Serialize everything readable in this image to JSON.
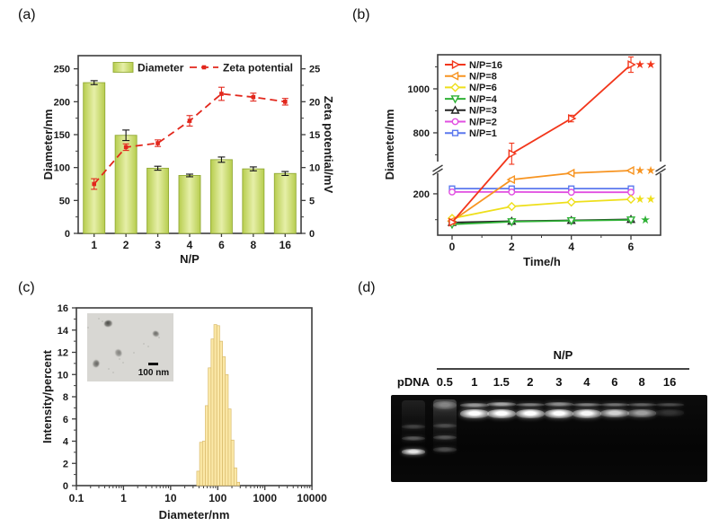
{
  "figure": {
    "panel_labels": [
      "(a)",
      "(b)",
      "(c)",
      "(d)"
    ],
    "colors": {
      "axis": "#3d3d3d",
      "bar_main": "#b7cd4e",
      "bar_light": "#e6efa8",
      "bar_edge": "#93ab37",
      "red": "#e2271c",
      "hist_fill": "#fbe8a7",
      "hist_edge": "#d9ba6a"
    }
  },
  "chart_data": [
    {
      "id": "a",
      "type": "bar",
      "categories": [
        "1",
        "2",
        "3",
        "4",
        "6",
        "8",
        "16"
      ],
      "xlabel": "N/P",
      "left_axis": {
        "label": "Diameter/nm",
        "ticks": [
          0,
          50,
          100,
          150,
          200,
          250
        ],
        "minor_step": 25,
        "lim": [
          0,
          270
        ]
      },
      "right_axis": {
        "label": "Zeta potential/mV",
        "ticks": [
          0,
          5,
          10,
          15,
          20,
          25
        ],
        "minor_step": 2.5,
        "lim": [
          0,
          27
        ]
      },
      "legend_position": "top-inside",
      "series": [
        {
          "name": "Diameter",
          "plot": "bar",
          "axis": "left",
          "values": [
            229,
            149,
            99,
            88,
            112,
            98,
            91
          ],
          "errors": [
            3,
            8,
            3,
            2,
            4,
            3,
            3
          ]
        },
        {
          "name": "Zeta potential",
          "plot": "dashed-line",
          "axis": "right",
          "marker": "square-filled",
          "values": [
            7.5,
            13.1,
            13.7,
            17.1,
            21.2,
            20.7,
            20.0
          ],
          "errors": [
            0.8,
            0.5,
            0.5,
            0.8,
            1.0,
            0.6,
            0.5
          ]
        }
      ]
    },
    {
      "id": "b",
      "type": "line",
      "x": [
        0,
        2,
        4,
        6
      ],
      "xlabel": "Time/h",
      "ylabel": "Diameter/nm",
      "x_ticks": [
        0,
        2,
        4,
        6
      ],
      "x_minor_ticks": [
        1,
        3,
        5
      ],
      "axis_break": {
        "lower_lim": [
          40,
          290
        ],
        "upper_lim": [
          657,
          1155
        ],
        "lower_ticks": [
          200
        ],
        "lower_minor_ticks": [
          100
        ],
        "upper_ticks": [
          800,
          1000
        ],
        "upper_minor_ticks": [
          700,
          900,
          1100
        ]
      },
      "legend_position": "top-left-inside",
      "series": [
        {
          "name": "N/P=16",
          "color": "#f2361b",
          "marker": "triangle-right",
          "values": [
            90,
            705,
            865,
            1110
          ],
          "errors": [
            4,
            48,
            15,
            35
          ],
          "sig": "**"
        },
        {
          "name": "N/P=8",
          "color": "#f79421",
          "marker": "triangle-left",
          "values": [
            95,
            255,
            280,
            290
          ],
          "errors": [
            3,
            6,
            5,
            6
          ],
          "sig": "**"
        },
        {
          "name": "N/P=6",
          "color": "#eedf1b",
          "marker": "diamond",
          "values": [
            105,
            151,
            168,
            179
          ],
          "errors": [
            3,
            4,
            4,
            4
          ],
          "sig": "**"
        },
        {
          "name": "N/P=4",
          "color": "#2eb135",
          "marker": "triangle-down",
          "values": [
            82,
            92,
            96,
            99
          ],
          "errors": [
            2,
            3,
            3,
            3
          ],
          "sig": "*"
        },
        {
          "name": "N/P=3",
          "color": "#222222",
          "marker": "triangle-up",
          "values": [
            89,
            94,
            97,
            101
          ],
          "errors": [
            2,
            3,
            3,
            3
          ],
          "sig": ""
        },
        {
          "name": "N/P=2",
          "color": "#e14fe1",
          "marker": "circle",
          "values": [
            207,
            207,
            206,
            206
          ],
          "errors": [
            2,
            2,
            2,
            2
          ],
          "sig": ""
        },
        {
          "name": "N/P=1",
          "color": "#5b78ee",
          "marker": "square",
          "values": [
            220,
            220,
            220,
            220
          ],
          "errors": [
            2,
            2,
            2,
            2
          ],
          "sig": ""
        }
      ]
    },
    {
      "id": "c",
      "type": "histogram",
      "xlabel": "Diameter/nm",
      "ylabel": "Intensity/percent",
      "x_scale": "log",
      "x_ticks": [
        0.1,
        1,
        10,
        100,
        1000,
        10000
      ],
      "x_tick_labels": [
        "0.1",
        "1",
        "10",
        "100",
        "1000",
        "10000"
      ],
      "ylim": [
        0,
        16
      ],
      "y_ticks": [
        0,
        2,
        4,
        6,
        8,
        10,
        12,
        14,
        16
      ],
      "bars": {
        "log10_start": 1.555,
        "log10_step": 0.0607,
        "heights": [
          1.3,
          3.9,
          4.0,
          7.2,
          10.6,
          13.2,
          14.5,
          14.4,
          13.0,
          11.6,
          10.0,
          6.9,
          4.1,
          1.6,
          0.3
        ]
      },
      "inset": {
        "type": "tem-image",
        "scale_bar_label": "100 nm",
        "particles": [
          {
            "x": 20,
            "y": 10,
            "s": 9,
            "d": 0.8
          },
          {
            "x": 76,
            "y": 26,
            "s": 7,
            "d": 0.62
          },
          {
            "x": 32,
            "y": 54,
            "s": 8,
            "d": 0.5
          },
          {
            "x": 6,
            "y": 70,
            "s": 8,
            "d": 0.66
          }
        ]
      }
    },
    {
      "id": "d",
      "type": "gel",
      "group_label": "N/P",
      "lanes": [
        {
          "label": "pDNA",
          "x": 0.071,
          "w": 26,
          "smear": {
            "y": 0.06,
            "h": 0.58,
            "b": 0.07
          },
          "bands": [
            {
              "y": 0.34,
              "h": 0.05,
              "b": 0.2
            },
            {
              "y": 0.47,
              "h": 0.06,
              "b": 0.3
            },
            {
              "y": 0.62,
              "h": 0.07,
              "b": 0.85
            }
          ]
        },
        {
          "label": "0.5",
          "x": 0.17,
          "w": 26,
          "smear": {
            "y": 0.05,
            "h": 0.62,
            "b": 0.16
          },
          "bands": [
            {
              "y": 0.07,
              "h": 0.1,
              "b": 0.38
            },
            {
              "y": 0.33,
              "h": 0.05,
              "b": 0.22
            },
            {
              "y": 0.46,
              "h": 0.06,
              "b": 0.28
            },
            {
              "y": 0.6,
              "h": 0.06,
              "b": 0.26
            }
          ]
        },
        {
          "label": "1",
          "x": 0.264,
          "w": 32,
          "bands": [
            {
              "y": 0.09,
              "h": 0.05,
              "b": 0.55
            },
            {
              "y": 0.17,
              "h": 0.1,
              "b": 1.0
            }
          ]
        },
        {
          "label": "1.5",
          "x": 0.349,
          "w": 32,
          "bands": [
            {
              "y": 0.08,
              "h": 0.05,
              "b": 0.6
            },
            {
              "y": 0.16,
              "h": 0.11,
              "b": 1.0
            }
          ]
        },
        {
          "label": "2",
          "x": 0.44,
          "w": 32,
          "bands": [
            {
              "y": 0.09,
              "h": 0.04,
              "b": 0.45
            },
            {
              "y": 0.16,
              "h": 0.11,
              "b": 0.97
            }
          ]
        },
        {
          "label": "3",
          "x": 0.531,
          "w": 32,
          "bands": [
            {
              "y": 0.08,
              "h": 0.05,
              "b": 0.5
            },
            {
              "y": 0.16,
              "h": 0.11,
              "b": 0.95
            }
          ]
        },
        {
          "label": "4",
          "x": 0.619,
          "w": 32,
          "bands": [
            {
              "y": 0.09,
              "h": 0.04,
              "b": 0.45
            },
            {
              "y": 0.17,
              "h": 0.1,
              "b": 0.92
            }
          ]
        },
        {
          "label": "6",
          "x": 0.707,
          "w": 32,
          "bands": [
            {
              "y": 0.09,
              "h": 0.04,
              "b": 0.4
            },
            {
              "y": 0.17,
              "h": 0.09,
              "b": 0.78
            }
          ]
        },
        {
          "label": "8",
          "x": 0.793,
          "w": 32,
          "bands": [
            {
              "y": 0.09,
              "h": 0.04,
              "b": 0.34
            },
            {
              "y": 0.17,
              "h": 0.09,
              "b": 0.58
            }
          ]
        },
        {
          "label": "16",
          "x": 0.881,
          "w": 32,
          "bands": [
            {
              "y": 0.09,
              "h": 0.04,
              "b": 0.25
            },
            {
              "y": 0.17,
              "h": 0.08,
              "b": 0.16
            }
          ]
        }
      ]
    }
  ]
}
